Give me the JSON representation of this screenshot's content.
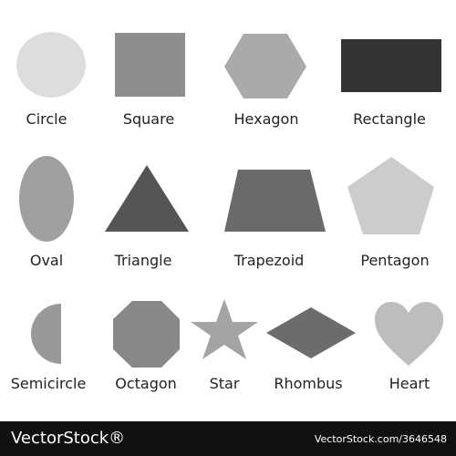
{
  "shapes": [
    {
      "name": "circle",
      "label": "Circle",
      "color": "#dddddd"
    },
    {
      "name": "square",
      "label": "Square",
      "color": "#8e8e8e"
    },
    {
      "name": "hexagon",
      "label": "Hexagon",
      "color": "#aaaaaa"
    },
    {
      "name": "rectangle",
      "label": "Rectangle",
      "color": "#333333"
    },
    {
      "name": "oval",
      "label": "Oval",
      "color": "#a0a0a0"
    },
    {
      "name": "triangle",
      "label": "Triangle",
      "color": "#555555"
    },
    {
      "name": "trapezoid",
      "label": "Trapezoid",
      "color": "#6a6a6a"
    },
    {
      "name": "pentagon",
      "label": "Pentagon",
      "color": "#cccccc"
    },
    {
      "name": "semicircle",
      "label": "Semicircle",
      "color": "#999999"
    },
    {
      "name": "octagon",
      "label": "Octagon",
      "color": "#888888"
    },
    {
      "name": "star",
      "label": "Star",
      "color": "#a3a3a3"
    },
    {
      "name": "rhombus",
      "label": "Rhombus",
      "color": "#6c6c6c"
    },
    {
      "name": "heart",
      "label": "Heart",
      "color": "#bdbdbd"
    }
  ],
  "footer": {
    "logo": "VectorStock®",
    "url": "VectorStock.com/3646548",
    "background": "#111111"
  }
}
